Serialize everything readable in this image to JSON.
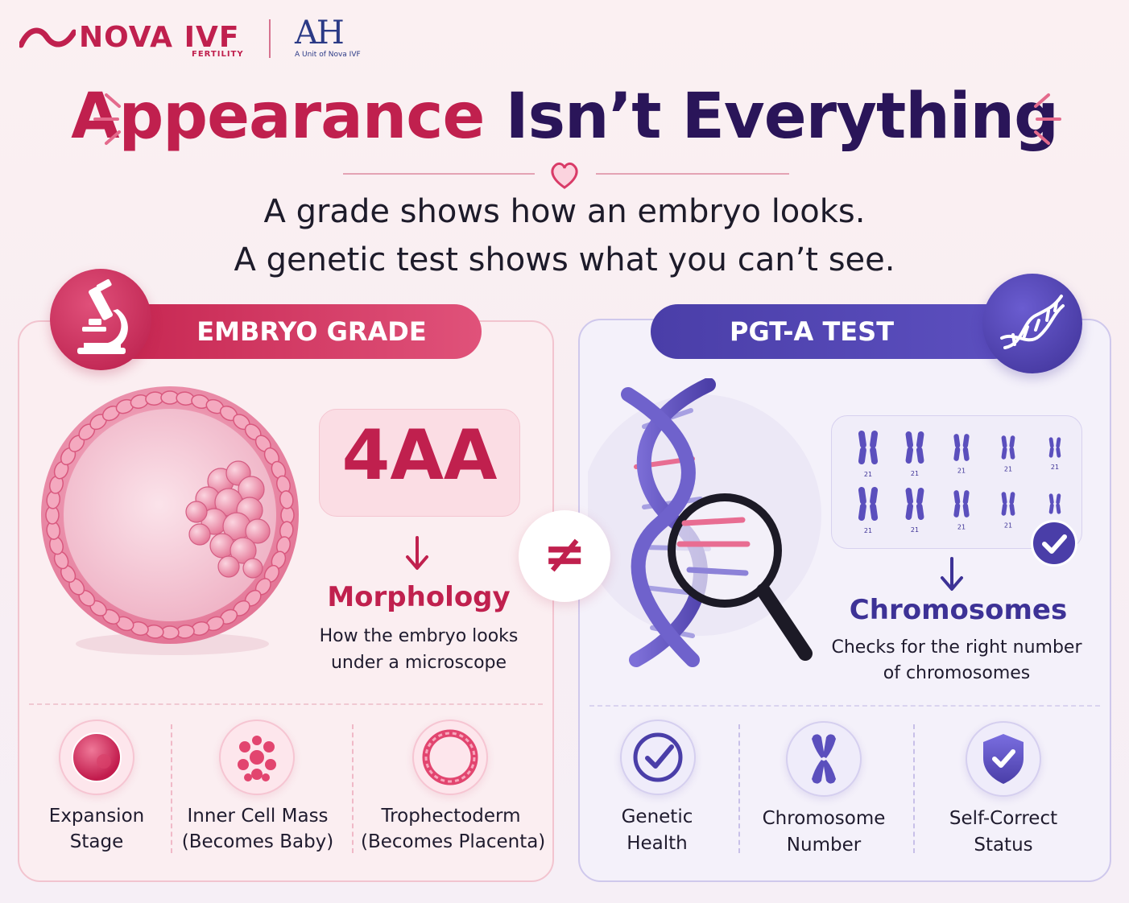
{
  "header": {
    "brand": "NOVA IVF",
    "brand_sub": "FERTILITY",
    "partner": "AH",
    "partner_sub": "A Unit of Nova IVF"
  },
  "title": {
    "part1": "Appearance",
    "part2": "Isn’t Everything"
  },
  "subtitle": {
    "line1": "A grade shows how an embryo looks.",
    "line2": "A genetic test shows what you can’t see."
  },
  "left": {
    "heading": "EMBRYO GRADE",
    "grade": "4AA",
    "label": "Morphology",
    "desc_line1": "How the embryo looks",
    "desc_line2": "under a microscope",
    "features": [
      {
        "line1": "Expansion",
        "line2": "Stage"
      },
      {
        "line1": "Inner Cell Mass",
        "line2": "(Becomes Baby)"
      },
      {
        "line1": "Trophectoderm",
        "line2": "(Becomes Placenta)"
      }
    ]
  },
  "compare_symbol": "≠",
  "right": {
    "heading": "PGT-A TEST",
    "chromosome_number": "21",
    "label": "Chromosomes",
    "desc_line1": "Checks for the right number",
    "desc_line2": "of chromosomes",
    "features": [
      {
        "line1": "Genetic",
        "line2": "Health"
      },
      {
        "line1": "Chromosome",
        "line2": "Number"
      },
      {
        "line1": "Self-Correct",
        "line2": "Status"
      }
    ]
  },
  "colors": {
    "pink": "#c0204e",
    "purple": "#4a3ea8",
    "navy": "#2a1559"
  },
  "icons": [
    "microscope-icon",
    "dna-icon",
    "magnifier-icon",
    "check-icon",
    "chromosome-icon",
    "shield-icon",
    "heart-icon"
  ]
}
